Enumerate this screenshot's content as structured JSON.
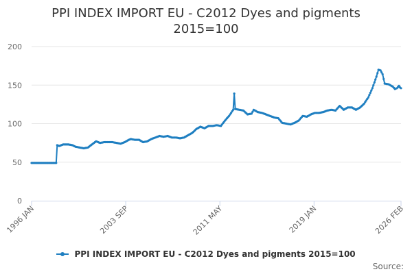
{
  "chart_data": {
    "type": "line",
    "title_lines": [
      "PPI INDEX IMPORT EU - C2012 Dyes and pigments",
      "2015=100"
    ],
    "ylim": [
      0,
      200
    ],
    "yticks": [
      {
        "v": 0,
        "label": "0"
      },
      {
        "v": 50,
        "label": "50"
      },
      {
        "v": 100,
        "label": "100"
      },
      {
        "v": 150,
        "label": "150"
      },
      {
        "v": 200,
        "label": "200"
      }
    ],
    "xlim": [
      "1996 JAN",
      "2026 FEB"
    ],
    "xticks": [
      "1996 JAN",
      "2003 SEP",
      "2011 MAY",
      "2019 JAN",
      "2026 FEB"
    ],
    "grid": true,
    "legend_position": "bottom",
    "series": [
      {
        "name": "PPI INDEX IMPORT EU - C2012 Dyes and pigments 2015=100",
        "color": "#1f7fc1",
        "points": [
          [
            "1996 JAN",
            49
          ],
          [
            "1997 JAN",
            49
          ],
          [
            "1998 JAN",
            49
          ],
          [
            "1998 JAN",
            49
          ],
          [
            "1998 FEB",
            72
          ],
          [
            "1998 APR",
            71
          ],
          [
            "1998 AUG",
            73
          ],
          [
            "1999 JAN",
            73
          ],
          [
            "1999 MAY",
            72
          ],
          [
            "1999 AUG",
            70
          ],
          [
            "1999 DEC",
            69
          ],
          [
            "2000 APR",
            68
          ],
          [
            "2000 AUG",
            69
          ],
          [
            "2000 DEC",
            73
          ],
          [
            "2001 APR",
            77
          ],
          [
            "2001 AUG",
            75
          ],
          [
            "2001 DEC",
            76
          ],
          [
            "2002 APR",
            76
          ],
          [
            "2002 AUG",
            76
          ],
          [
            "2002 DEC",
            75
          ],
          [
            "2003 APR",
            74
          ],
          [
            "2003 AUG",
            76
          ],
          [
            "2003 DEC",
            79
          ],
          [
            "2004 FEB",
            80
          ],
          [
            "2004 JUN",
            79
          ],
          [
            "2004 OCT",
            79
          ],
          [
            "2005 FEB",
            76
          ],
          [
            "2005 JUN",
            77
          ],
          [
            "2005 OCT",
            80
          ],
          [
            "2006 FEB",
            82
          ],
          [
            "2006 JUN",
            84
          ],
          [
            "2006 OCT",
            83
          ],
          [
            "2007 FEB",
            84
          ],
          [
            "2007 JUN",
            82
          ],
          [
            "2007 OCT",
            82
          ],
          [
            "2008 FEB",
            81
          ],
          [
            "2008 JUN",
            82
          ],
          [
            "2008 OCT",
            85
          ],
          [
            "2009 FEB",
            88
          ],
          [
            "2009 JUN",
            93
          ],
          [
            "2009 OCT",
            96
          ],
          [
            "2010 FEB",
            94
          ],
          [
            "2010 JUN",
            97
          ],
          [
            "2010 OCT",
            97
          ],
          [
            "2011 FEB",
            98
          ],
          [
            "2011 JUN",
            97
          ],
          [
            "2011 OCT",
            104
          ],
          [
            "2012 FEB",
            110
          ],
          [
            "2012 JUN",
            118
          ],
          [
            "2012 JUL",
            139
          ],
          [
            "2012 AUG",
            119
          ],
          [
            "2012 DEC",
            118
          ],
          [
            "2013 APR",
            117
          ],
          [
            "2013 AUG",
            112
          ],
          [
            "2013 DEC",
            113
          ],
          [
            "2014 FEB",
            118
          ],
          [
            "2014 JUN",
            115
          ],
          [
            "2014 OCT",
            114
          ],
          [
            "2015 FEB",
            112
          ],
          [
            "2015 JUN",
            110
          ],
          [
            "2015 OCT",
            108
          ],
          [
            "2016 FEB",
            107
          ],
          [
            "2016 JUN",
            101
          ],
          [
            "2016 OCT",
            100
          ],
          [
            "2017 FEB",
            99
          ],
          [
            "2017 JUN",
            101
          ],
          [
            "2017 OCT",
            104
          ],
          [
            "2018 FEB",
            110
          ],
          [
            "2018 JUN",
            109
          ],
          [
            "2018 OCT",
            112
          ],
          [
            "2019 FEB",
            114
          ],
          [
            "2019 JUN",
            114
          ],
          [
            "2019 OCT",
            115
          ],
          [
            "2020 FEB",
            117
          ],
          [
            "2020 JUN",
            118
          ],
          [
            "2020 OCT",
            117
          ],
          [
            "2021 FEB",
            123
          ],
          [
            "2021 JUN",
            118
          ],
          [
            "2021 OCT",
            121
          ],
          [
            "2022 FEB",
            121
          ],
          [
            "2022 JUN",
            118
          ],
          [
            "2022 OCT",
            121
          ],
          [
            "2023 FEB",
            126
          ],
          [
            "2023 JUN",
            134
          ],
          [
            "2023 OCT",
            146
          ],
          [
            "2024 FEB",
            161
          ],
          [
            "2024 APR",
            170
          ],
          [
            "2024 JUN",
            169
          ],
          [
            "2024 AUG",
            164
          ],
          [
            "2024 OCT",
            152
          ],
          [
            "2025 FEB",
            151
          ],
          [
            "2025 JUN",
            148
          ],
          [
            "2025 AUG",
            145
          ],
          [
            "2025 OCT",
            146
          ],
          [
            "2025 DEC",
            149
          ],
          [
            "2026 JAN",
            147
          ],
          [
            "2026 FEB",
            146
          ]
        ]
      }
    ]
  },
  "legend": {
    "label": "PPI INDEX IMPORT EU - C2012 Dyes and pigments 2015=100"
  },
  "credit": {
    "label": "Source:"
  }
}
